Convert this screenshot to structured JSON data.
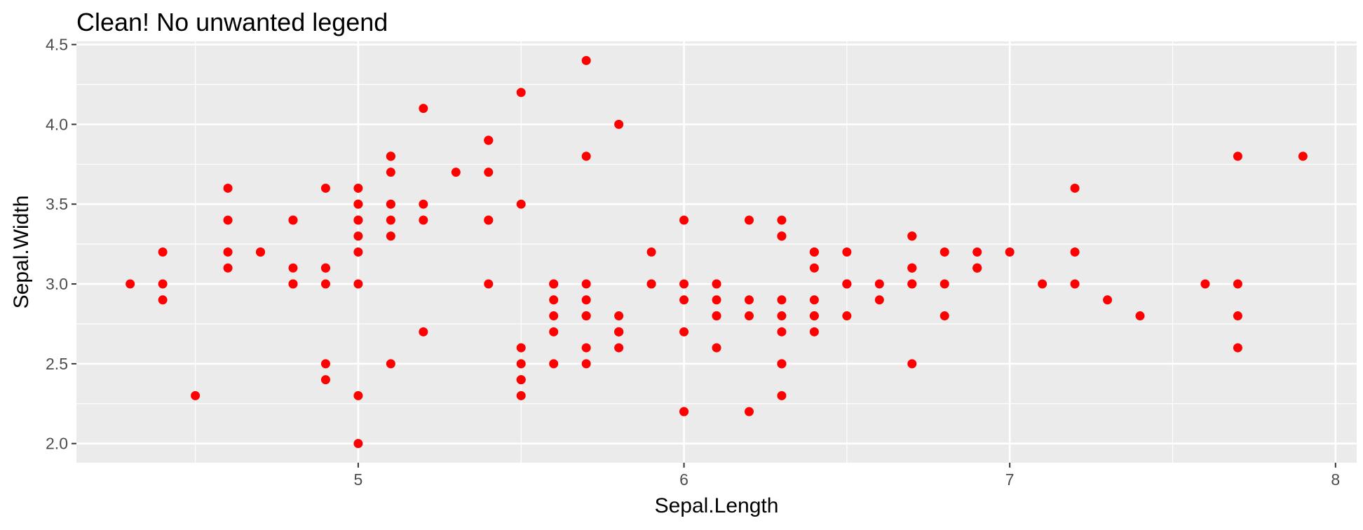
{
  "chart_data": {
    "type": "scatter",
    "title": "Clean! No unwanted legend",
    "xlabel": "Sepal.Length",
    "ylabel": "Sepal.Width",
    "xlim": [
      4.135,
      8.065
    ],
    "ylim": [
      1.88,
      4.52
    ],
    "x_ticks": [
      5,
      6,
      7,
      8
    ],
    "y_ticks": [
      2.0,
      2.5,
      3.0,
      3.5,
      4.0,
      4.5
    ],
    "x_tick_labels": [
      "5",
      "6",
      "7",
      "8"
    ],
    "y_tick_labels": [
      "2.0",
      "2.5",
      "3.0",
      "3.5",
      "4.0",
      "4.5"
    ],
    "grid": true,
    "legend": "none",
    "colors": {
      "point": "#ff0000",
      "panel": "#ebebeb",
      "grid": "#ffffff",
      "tick_label": "#4d4d4d",
      "tick_mark": "#333333"
    },
    "x": [
      5.1,
      4.9,
      4.7,
      4.6,
      5.0,
      5.4,
      4.6,
      5.0,
      4.4,
      4.9,
      5.4,
      4.8,
      4.8,
      4.3,
      5.8,
      5.7,
      5.4,
      5.1,
      5.7,
      5.1,
      5.4,
      5.1,
      4.6,
      5.1,
      4.8,
      5.0,
      5.0,
      5.2,
      5.2,
      4.7,
      4.8,
      5.4,
      5.2,
      5.5,
      4.9,
      5.0,
      5.5,
      4.9,
      4.4,
      5.1,
      5.0,
      4.5,
      4.4,
      5.0,
      5.1,
      4.8,
      5.1,
      4.6,
      5.3,
      5.0,
      7.0,
      6.4,
      6.9,
      5.5,
      6.5,
      5.7,
      6.3,
      4.9,
      6.6,
      5.2,
      5.0,
      5.9,
      6.0,
      6.1,
      5.6,
      6.7,
      5.6,
      5.8,
      6.2,
      5.6,
      5.9,
      6.1,
      6.3,
      6.1,
      6.4,
      6.6,
      6.8,
      6.7,
      6.0,
      5.7,
      5.5,
      5.5,
      5.8,
      6.0,
      5.4,
      6.0,
      6.7,
      6.3,
      5.6,
      5.5,
      5.5,
      6.1,
      5.8,
      5.0,
      5.6,
      5.7,
      5.7,
      6.2,
      5.1,
      5.7,
      6.3,
      5.8,
      7.1,
      6.3,
      6.5,
      7.6,
      4.9,
      7.3,
      6.7,
      7.2,
      6.5,
      6.4,
      6.8,
      5.7,
      5.8,
      6.4,
      6.5,
      7.7,
      7.7,
      6.0,
      6.9,
      5.6,
      7.7,
      6.3,
      6.7,
      7.2,
      6.2,
      6.1,
      6.4,
      7.2,
      7.4,
      7.9,
      6.4,
      6.3,
      6.1,
      7.7,
      6.3,
      6.4,
      6.0,
      6.9,
      6.7,
      6.9,
      5.8,
      6.8,
      6.7,
      6.7,
      6.3,
      6.5,
      6.2,
      5.9
    ],
    "y": [
      3.5,
      3.0,
      3.2,
      3.1,
      3.6,
      3.9,
      3.4,
      3.4,
      2.9,
      3.1,
      3.7,
      3.4,
      3.0,
      3.0,
      4.0,
      4.4,
      3.9,
      3.5,
      3.8,
      3.8,
      3.4,
      3.7,
      3.6,
      3.3,
      3.4,
      3.0,
      3.4,
      3.5,
      3.4,
      3.2,
      3.1,
      3.4,
      4.1,
      4.2,
      3.1,
      3.2,
      3.5,
      3.6,
      3.0,
      3.4,
      3.5,
      2.3,
      3.2,
      3.5,
      3.8,
      3.0,
      3.8,
      3.2,
      3.7,
      3.3,
      3.2,
      3.2,
      3.1,
      2.3,
      2.8,
      2.8,
      3.3,
      2.4,
      2.9,
      2.7,
      2.0,
      3.0,
      2.2,
      2.9,
      2.9,
      3.1,
      3.0,
      2.7,
      2.2,
      2.5,
      3.2,
      2.8,
      2.5,
      2.8,
      2.9,
      3.0,
      2.8,
      3.0,
      2.9,
      2.6,
      2.4,
      2.4,
      2.7,
      2.7,
      3.0,
      3.4,
      3.1,
      2.3,
      3.0,
      2.5,
      2.6,
      3.0,
      2.6,
      2.3,
      2.7,
      3.0,
      2.9,
      2.9,
      2.5,
      2.8,
      3.3,
      2.7,
      3.0,
      2.9,
      3.0,
      3.0,
      2.5,
      2.9,
      2.5,
      3.6,
      3.2,
      2.7,
      3.0,
      2.5,
      2.8,
      3.2,
      3.0,
      3.8,
      2.6,
      2.2,
      3.2,
      2.8,
      2.8,
      2.7,
      3.3,
      3.2,
      2.8,
      3.0,
      2.8,
      3.0,
      2.8,
      3.8,
      2.8,
      2.8,
      2.6,
      3.0,
      3.4,
      3.1,
      3.0,
      3.1,
      3.1,
      3.1,
      2.7,
      3.2,
      3.3,
      3.0,
      2.5,
      3.0,
      3.4,
      3.0
    ]
  }
}
